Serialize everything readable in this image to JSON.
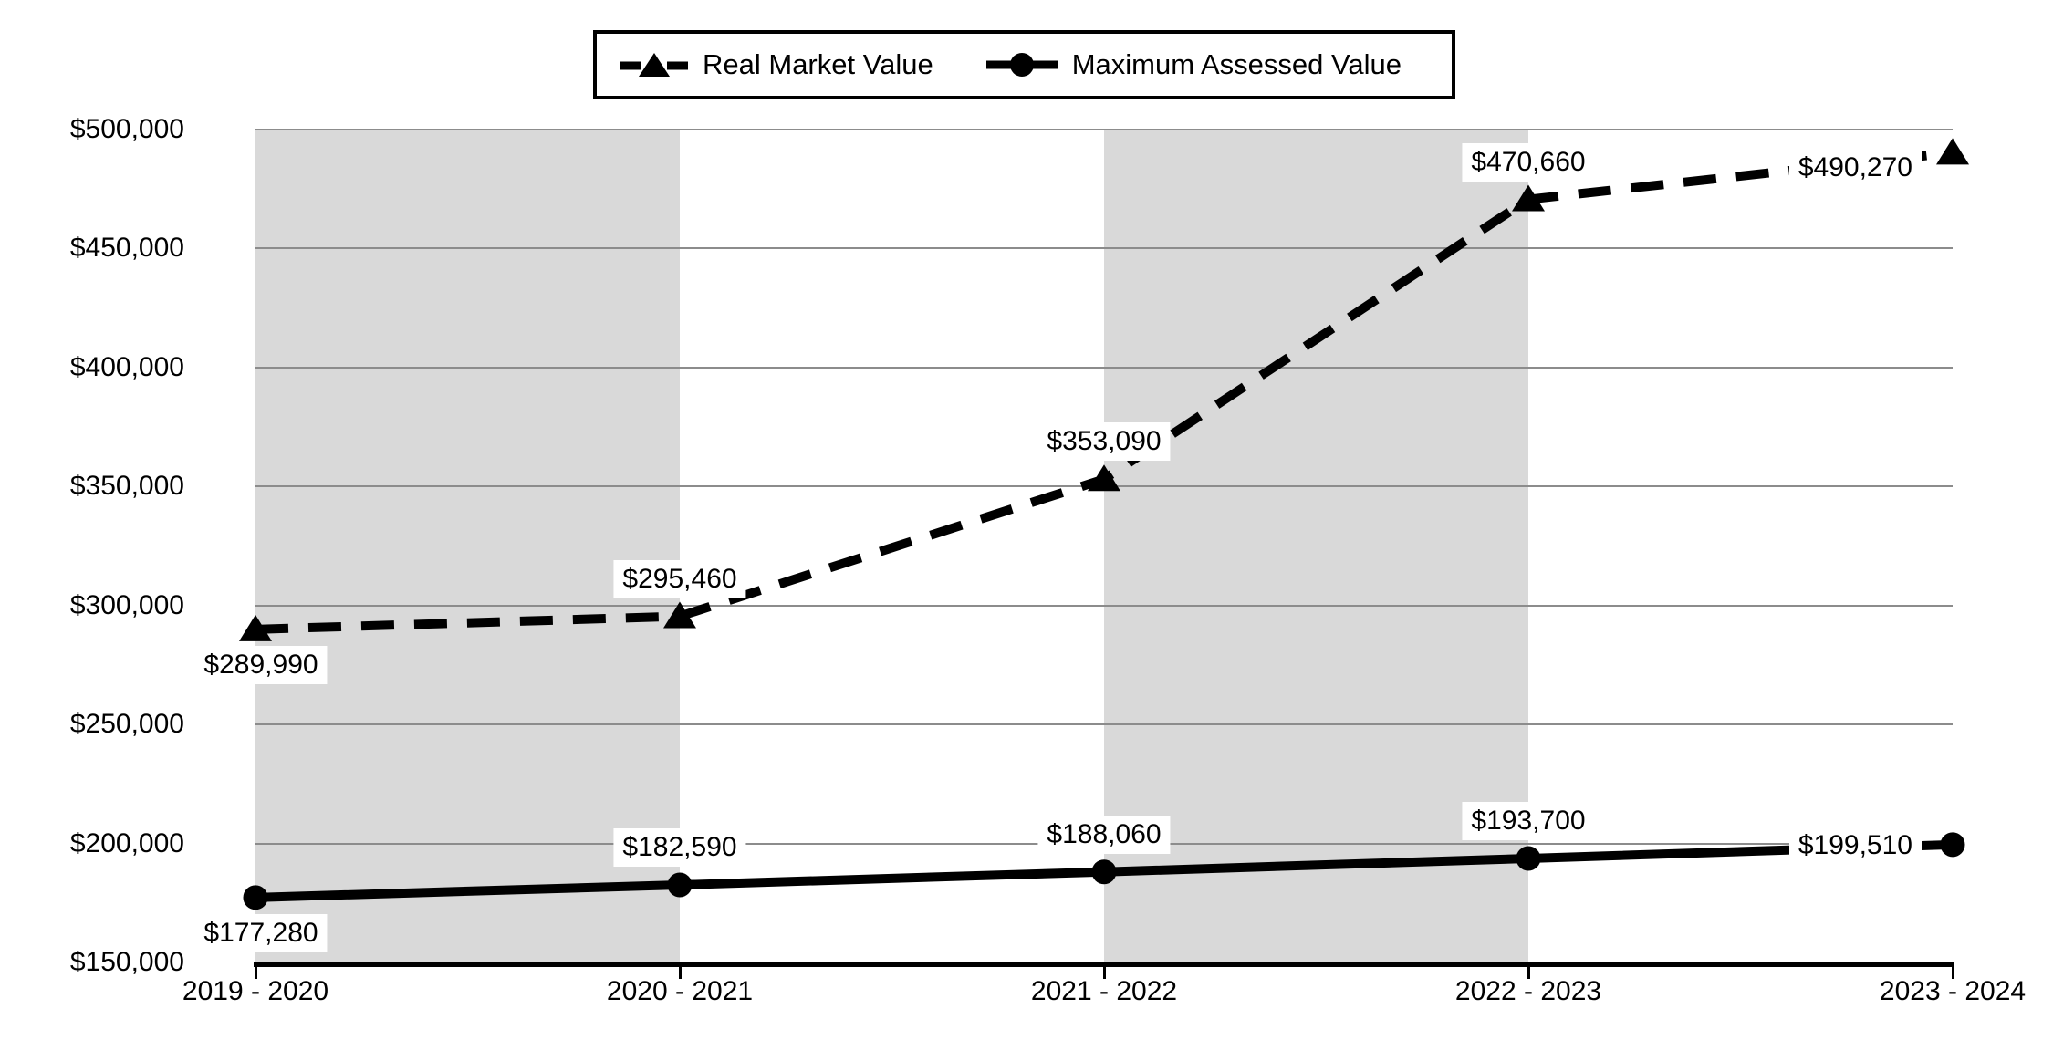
{
  "legend": {
    "items": [
      {
        "label": "Real Market Value",
        "line": "dashed",
        "marker": "triangle"
      },
      {
        "label": "Maximum Assessed Value",
        "line": "solid",
        "marker": "circle"
      }
    ]
  },
  "chart_data": {
    "type": "line",
    "categories": [
      "2019 - 2020",
      "2020 - 2021",
      "2021 - 2022",
      "2022 - 2023",
      "2023 - 2024"
    ],
    "series": [
      {
        "name": "Real Market Value",
        "values": [
          289990,
          295460,
          353090,
          470660,
          490270
        ],
        "labels": [
          "$289,990",
          "$295,460",
          "$353,090",
          "$470,660",
          "$490,270"
        ],
        "line": "dashed",
        "marker": "triangle"
      },
      {
        "name": "Maximum Assessed Value",
        "values": [
          177280,
          182590,
          188060,
          193700,
          199510
        ],
        "labels": [
          "$177,280",
          "$182,590",
          "$188,060",
          "$193,700",
          "$199,510"
        ],
        "line": "solid",
        "marker": "circle"
      }
    ],
    "yticks": [
      {
        "value": 150000,
        "label": "$150,000"
      },
      {
        "value": 200000,
        "label": "$200,000"
      },
      {
        "value": 250000,
        "label": "$250,000"
      },
      {
        "value": 300000,
        "label": "$300,000"
      },
      {
        "value": 350000,
        "label": "$350,000"
      },
      {
        "value": 400000,
        "label": "$400,000"
      },
      {
        "value": 450000,
        "label": "$450,000"
      },
      {
        "value": 500000,
        "label": "$500,000"
      }
    ],
    "ylim": [
      150000,
      500000
    ],
    "xlabel": "",
    "ylabel": "",
    "title": "",
    "grid": "horizontal",
    "legend_position": "top-center",
    "plot_bands": [
      [
        0,
        1
      ],
      [
        2,
        3
      ]
    ],
    "colors": {
      "series": "#000000",
      "band": "#d9d9d9",
      "gridline": "#8c8c8c",
      "label_background": "#ffffff",
      "background": "#ffffff"
    }
  }
}
